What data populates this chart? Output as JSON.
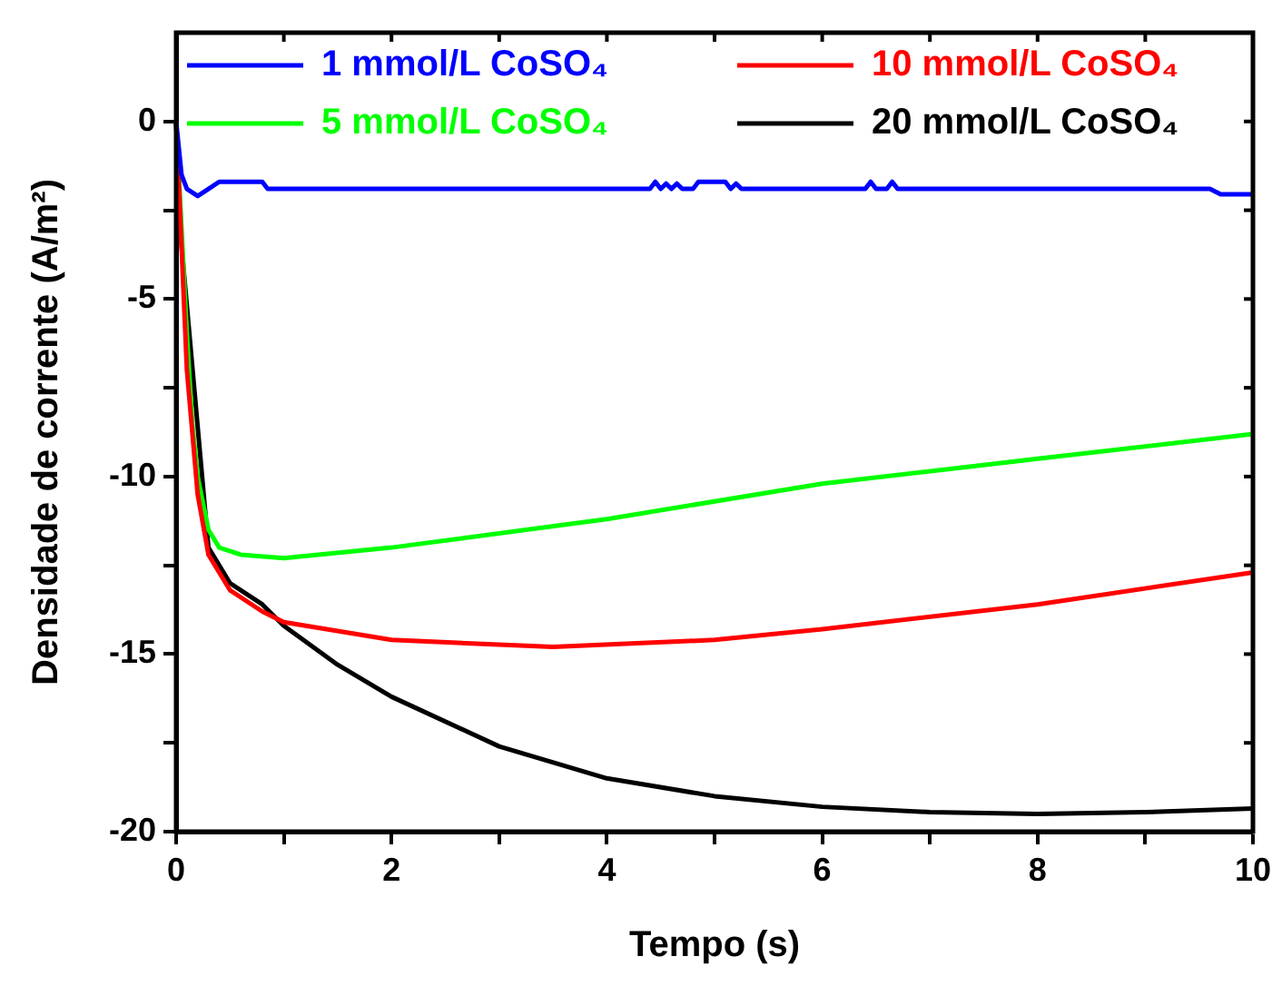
{
  "chart_data": {
    "type": "line",
    "xlabel": "Tempo (s)",
    "ylabel": "Densidade de corrente (A/m²)",
    "xlim": [
      0,
      10
    ],
    "ylim": [
      -20,
      2.5
    ],
    "xticks": [
      0,
      {
        "value": 1,
        "label": null
      },
      2,
      {
        "value": 3,
        "label": null
      },
      4,
      {
        "value": 5,
        "label": null
      },
      6,
      {
        "value": 7,
        "label": null
      },
      8,
      {
        "value": 9,
        "label": null
      },
      10
    ],
    "yticks": [
      -20,
      {
        "value": -17.5,
        "label": null
      },
      -15,
      {
        "value": -12.5,
        "label": null
      },
      -10,
      {
        "value": -7.5,
        "label": null
      },
      -5,
      {
        "value": -2.5,
        "label": null
      },
      0
    ],
    "legend": "top",
    "grid": false,
    "marker": "none",
    "line_style": "solid",
    "series": [
      {
        "name": "1 mmol/L CoSO₄",
        "color": "#0000ff",
        "x": [
          0,
          0.05,
          0.1,
          0.2,
          0.3,
          0.4,
          0.8,
          0.85,
          4.4,
          4.45,
          4.5,
          4.55,
          4.6,
          4.65,
          4.7,
          4.8,
          4.85,
          4.9,
          5.1,
          5.15,
          5.2,
          5.25,
          5.3,
          6.4,
          6.45,
          6.5,
          6.6,
          6.65,
          6.7,
          9.6,
          9.7,
          10
        ],
        "values": [
          0,
          -1.5,
          -1.9,
          -2.1,
          -1.9,
          -1.7,
          -1.7,
          -1.9,
          -1.9,
          -1.7,
          -1.9,
          -1.75,
          -1.9,
          -1.75,
          -1.9,
          -1.9,
          -1.7,
          -1.7,
          -1.7,
          -1.9,
          -1.75,
          -1.9,
          -1.9,
          -1.9,
          -1.7,
          -1.9,
          -1.9,
          -1.7,
          -1.9,
          -1.9,
          -2.05,
          -2.05
        ]
      },
      {
        "name": "10 mmol/L CoSO₄",
        "color": "#ff0000",
        "x": [
          0,
          0.05,
          0.1,
          0.2,
          0.3,
          0.5,
          0.8,
          1,
          2,
          3.5,
          5,
          6,
          8,
          10
        ],
        "values": [
          0,
          -3.5,
          -7,
          -10.5,
          -12.2,
          -13.2,
          -13.8,
          -14.1,
          -14.6,
          -14.8,
          -14.6,
          -14.3,
          -13.6,
          -12.7
        ]
      },
      {
        "name": "5 mmol/L CoSO₄",
        "color": "#00ff00",
        "x": [
          0,
          0.05,
          0.1,
          0.15,
          0.2,
          0.3,
          0.4,
          0.6,
          1,
          2,
          4,
          6,
          8,
          10
        ],
        "values": [
          0,
          -3,
          -6,
          -8.5,
          -10,
          -11.5,
          -12,
          -12.2,
          -12.3,
          -12,
          -11.2,
          -10.2,
          -9.5,
          -8.8
        ]
      },
      {
        "name": "20 mmol/L CoSO₄",
        "color": "#000000",
        "x": [
          0,
          0.05,
          0.3,
          0.5,
          0.8,
          1,
          1.5,
          2,
          3,
          4,
          5,
          6,
          7,
          8,
          9,
          10
        ],
        "values": [
          0,
          -3.5,
          -12,
          -13,
          -13.6,
          -14.2,
          -15.3,
          -16.2,
          -17.6,
          -18.5,
          -19,
          -19.3,
          -19.45,
          -19.5,
          -19.45,
          -19.35
        ]
      }
    ]
  }
}
